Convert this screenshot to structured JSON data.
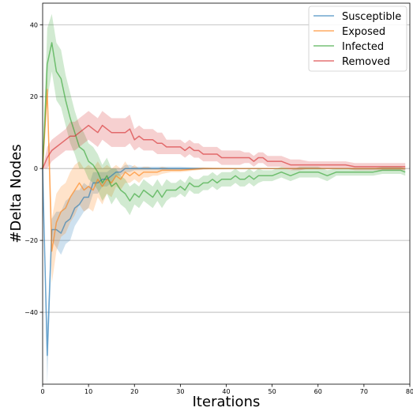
{
  "chart_data": {
    "type": "line",
    "title": "",
    "xlabel": "Iterations",
    "ylabel": "#Delta Nodes",
    "xlim": [
      0,
      80
    ],
    "ylim": [
      -60,
      46
    ],
    "xticks": [
      0,
      10,
      20,
      30,
      40,
      50,
      60,
      70,
      80
    ],
    "yticks": [
      -40,
      -20,
      0,
      20,
      40
    ],
    "xtick_labels": [
      "0",
      "10",
      "20",
      "30",
      "40",
      "50",
      "60",
      "70",
      "80"
    ],
    "ytick_labels": [
      "−40",
      "−20",
      "0",
      "20",
      "40"
    ],
    "grid": "horizontal",
    "legend_position": "top-right",
    "series": [
      {
        "name": "Susceptible",
        "color": "#1f77b4",
        "x": [
          0,
          1,
          2,
          3,
          4,
          5,
          6,
          7,
          8,
          9,
          10,
          11,
          12,
          13,
          14,
          15,
          16,
          17,
          18,
          19,
          20,
          22,
          24,
          26,
          28,
          30,
          40,
          50,
          60,
          70,
          79
        ],
        "values": [
          0,
          -52,
          -17,
          -17,
          -18,
          -15,
          -14,
          -11,
          -10,
          -8,
          -8,
          -4,
          -4,
          -3,
          -3,
          -2,
          -1,
          -1,
          0,
          0,
          0,
          0,
          0,
          0,
          0,
          0,
          0,
          0,
          0,
          0,
          0
        ],
        "spread": [
          0,
          8,
          3,
          5,
          6,
          6,
          6,
          5,
          4,
          4,
          3,
          3,
          3,
          2,
          2,
          2,
          1,
          1,
          1,
          1,
          0.5,
          0.5,
          0.5,
          0.5,
          0.5,
          0.5,
          0,
          0,
          0,
          0,
          0
        ]
      },
      {
        "name": "Exposed",
        "color": "#ff7f0e",
        "x": [
          0,
          1,
          2,
          3,
          4,
          5,
          6,
          7,
          8,
          9,
          10,
          11,
          12,
          13,
          14,
          15,
          16,
          17,
          18,
          19,
          20,
          21,
          22,
          23,
          24,
          25,
          26,
          28,
          30,
          35,
          40,
          50,
          60,
          70,
          79
        ],
        "values": [
          0,
          22,
          -23,
          -15,
          -12,
          -11,
          -8,
          -6,
          -4,
          -6,
          -5,
          -6,
          -3,
          -5,
          -3,
          -4,
          -2,
          -3,
          -1,
          -2,
          -1,
          -2,
          -1,
          -1,
          -1,
          -1,
          -0.5,
          -0.5,
          -0.5,
          0,
          0,
          0,
          0,
          0,
          0
        ],
        "spread": [
          0,
          4,
          9,
          8,
          7,
          7,
          7,
          7,
          6,
          6,
          6,
          6,
          5,
          5,
          4,
          4,
          3,
          3,
          3,
          2,
          2,
          2,
          1.5,
          1.5,
          1,
          1,
          1,
          0.5,
          0.5,
          0.3,
          0.2,
          0,
          0,
          0,
          0
        ]
      },
      {
        "name": "Infected",
        "color": "#2ca02c",
        "x": [
          0,
          1,
          2,
          3,
          4,
          5,
          6,
          7,
          8,
          9,
          10,
          11,
          12,
          13,
          14,
          15,
          16,
          17,
          18,
          19,
          20,
          21,
          22,
          23,
          24,
          25,
          26,
          27,
          28,
          29,
          30,
          31,
          32,
          33,
          34,
          35,
          36,
          37,
          38,
          39,
          40,
          41,
          42,
          43,
          44,
          45,
          46,
          47,
          48,
          49,
          50,
          52,
          54,
          56,
          58,
          60,
          62,
          64,
          66,
          68,
          70,
          72,
          74,
          76,
          78,
          79
        ],
        "values": [
          0,
          29,
          35,
          27,
          25,
          19,
          14,
          10,
          6,
          5,
          2,
          1,
          -1,
          -4,
          -2,
          -5,
          -4,
          -6,
          -7,
          -9,
          -7,
          -8,
          -6,
          -7,
          -8,
          -6,
          -8,
          -6,
          -6,
          -6,
          -5,
          -6,
          -4,
          -5,
          -5,
          -4,
          -4,
          -3,
          -4,
          -3,
          -3,
          -3,
          -2,
          -3,
          -3,
          -2,
          -3,
          -2,
          -2,
          -2,
          -2,
          -1,
          -2,
          -1,
          -1,
          -1,
          -2,
          -1,
          -1,
          -1,
          -1,
          -1,
          -0.5,
          -0.5,
          -0.5,
          -1
        ],
        "spread": [
          0,
          10,
          8,
          8,
          8,
          7,
          7,
          6,
          6,
          5,
          5,
          5,
          5,
          5,
          5,
          5,
          4,
          4,
          4,
          4,
          3,
          3,
          3,
          3,
          3,
          3,
          3,
          3,
          2,
          2,
          2,
          2,
          2,
          2,
          2,
          2,
          2,
          2,
          2,
          2,
          2,
          2,
          2,
          2,
          2,
          2,
          2,
          2,
          1.5,
          1.5,
          1.5,
          1.5,
          1.5,
          1.5,
          1.5,
          1.5,
          1.5,
          1,
          1,
          1,
          1,
          1,
          1,
          1,
          1,
          1
        ]
      },
      {
        "name": "Removed",
        "color": "#d62728",
        "x": [
          0,
          1,
          2,
          3,
          4,
          5,
          6,
          7,
          8,
          9,
          10,
          11,
          12,
          13,
          14,
          15,
          16,
          17,
          18,
          19,
          20,
          21,
          22,
          23,
          24,
          25,
          26,
          27,
          28,
          29,
          30,
          31,
          32,
          33,
          34,
          35,
          36,
          37,
          38,
          39,
          40,
          41,
          42,
          43,
          44,
          45,
          46,
          47,
          48,
          49,
          50,
          52,
          54,
          56,
          58,
          60,
          62,
          64,
          66,
          68,
          70,
          72,
          74,
          76,
          78,
          79
        ],
        "values": [
          0,
          3,
          5,
          6,
          7,
          8,
          9,
          9,
          10,
          11,
          12,
          11,
          10,
          12,
          11,
          10,
          10,
          10,
          10,
          11,
          8,
          9,
          8,
          8,
          8,
          7,
          7,
          6,
          6,
          6,
          6,
          5,
          6,
          5,
          5,
          4,
          4,
          4,
          4,
          3,
          3,
          3,
          3,
          3,
          3,
          3,
          2,
          3,
          3,
          2,
          2,
          2,
          1,
          1,
          1,
          1,
          1,
          1,
          1,
          0.5,
          0.5,
          0.5,
          0.5,
          0.5,
          0.5,
          0.5
        ],
        "spread": [
          0,
          3,
          3,
          3,
          3,
          3,
          4,
          4,
          4,
          4,
          4,
          4,
          4,
          4,
          4,
          4,
          4,
          4,
          4,
          4,
          3,
          3,
          3,
          3,
          3,
          3,
          3,
          2,
          2,
          2,
          2,
          2,
          2,
          2,
          2,
          2,
          2,
          2,
          2,
          2,
          2,
          2,
          2,
          2,
          1.5,
          1.5,
          1.5,
          1.5,
          1.5,
          1.5,
          1.5,
          1.5,
          1.5,
          1.5,
          1,
          1,
          1,
          1,
          1,
          1,
          1,
          1,
          1,
          1,
          1,
          1
        ]
      }
    ]
  }
}
